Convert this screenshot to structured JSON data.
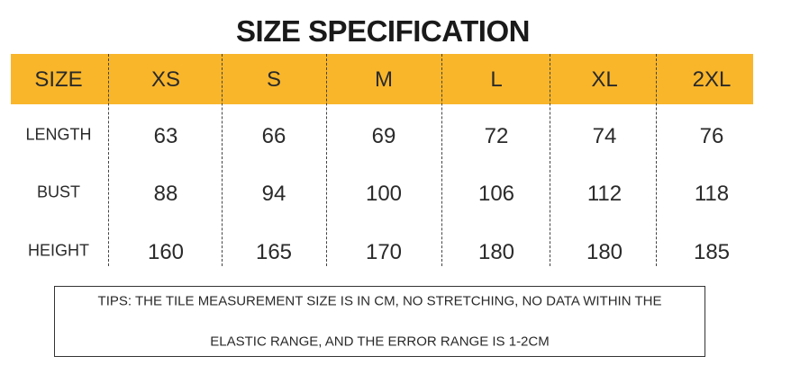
{
  "header": {
    "title": "SIZE SPECIFICATION"
  },
  "table": {
    "columns": [
      "SIZE",
      "XS",
      "S",
      "M",
      "L",
      "XL",
      "2XL"
    ],
    "rows": [
      [
        "LENGTH",
        "63",
        "66",
        "69",
        "72",
        "74",
        "76"
      ],
      [
        "BUST",
        "88",
        "94",
        "100",
        "106",
        "112",
        "118"
      ],
      [
        "HEIGHT",
        "160",
        "165",
        "170",
        "180",
        "180",
        "185"
      ]
    ]
  },
  "tips": {
    "lines": [
      "TIPS: THE TILE MEASUREMENT SIZE IS IN CM, NO STRETCHING, NO DATA WITHIN THE",
      "ELASTIC RANGE, AND THE ERROR RANGE IS 1-2CM"
    ]
  }
}
